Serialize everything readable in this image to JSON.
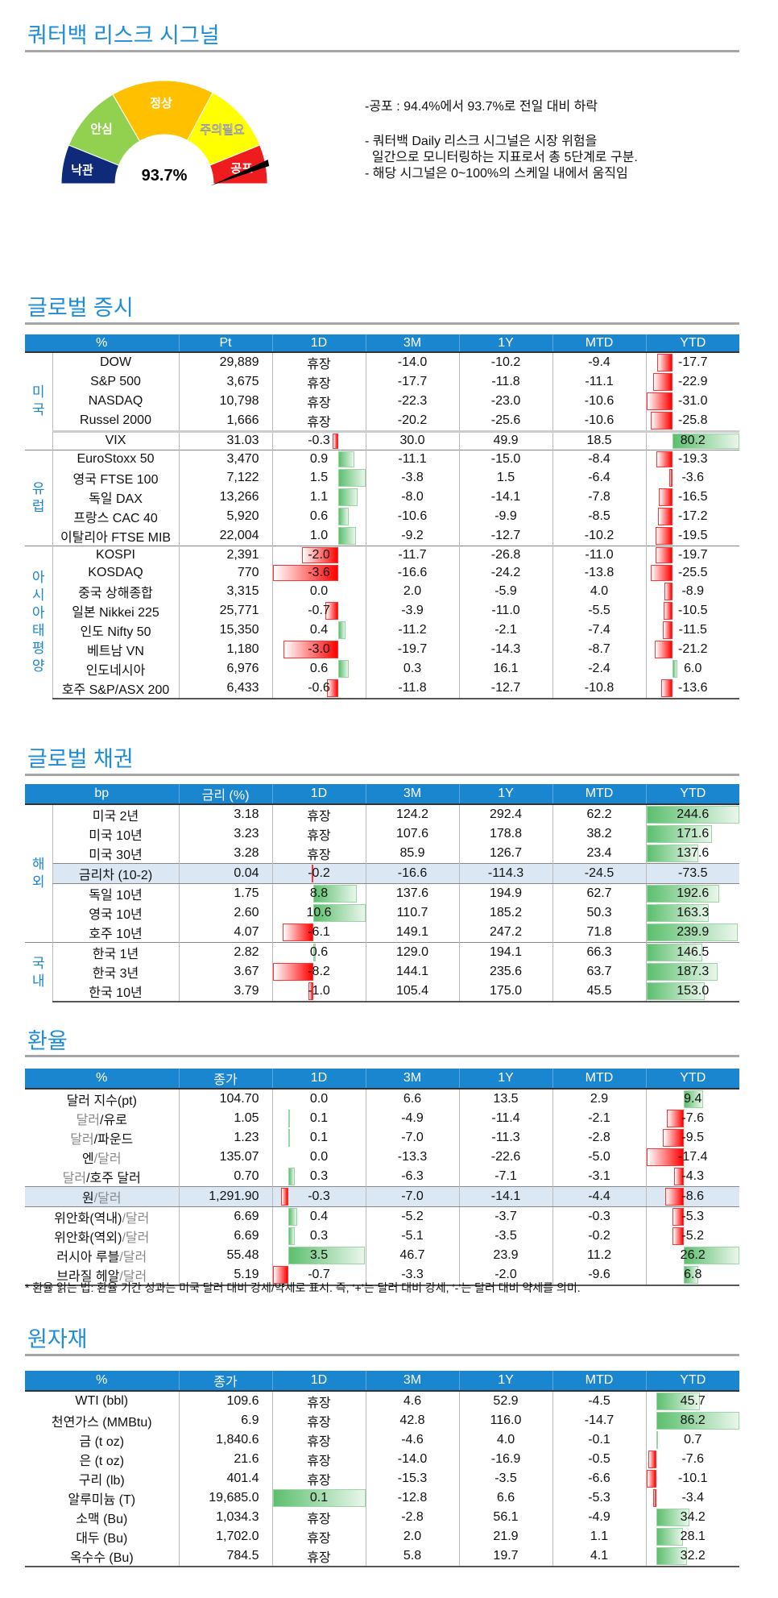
{
  "signal": {
    "title": "쿼터백 리스크 시그널",
    "value_label": "93.7%",
    "value": 0.937,
    "segments": [
      "낙관",
      "안심",
      "정상",
      "주의필요",
      "공포"
    ],
    "segment_colors": [
      "#102a7a",
      "#92d050",
      "#ffc000",
      "#ffff00",
      "#ee1c1c"
    ],
    "headline": "-공포 : 94.4%에서 93.7%로 전일 대비 하락",
    "notes": [
      "- 쿼터백 Daily 리스크 시그널은 시장 위험을",
      "  일간으로 모니터링하는 지표로서 총 5단계로 구분.",
      "- 해당 시그널은 0~100%의 스케일 내에서 움직임"
    ]
  },
  "equity": {
    "title": "글로벌 증시",
    "headers": [
      "%",
      "Pt",
      "1D",
      "3M",
      "1Y",
      "MTD",
      "YTD"
    ],
    "groups": [
      {
        "label": "미국",
        "rows": [
          {
            "name": "DOW",
            "v": [
              "29,889",
              "휴장",
              "-14.0",
              "-10.2",
              "-9.4",
              "-17.7"
            ]
          },
          {
            "name": "S&P 500",
            "v": [
              "3,675",
              "휴장",
              "-17.7",
              "-11.8",
              "-11.1",
              "-22.9"
            ]
          },
          {
            "name": "NASDAQ",
            "v": [
              "10,798",
              "휴장",
              "-22.3",
              "-23.0",
              "-10.6",
              "-31.0"
            ]
          },
          {
            "name": "Russel 2000",
            "v": [
              "1,666",
              "휴장",
              "-20.2",
              "-25.6",
              "-10.6",
              "-25.8"
            ]
          },
          {
            "name": "VIX",
            "v": [
              "31.03",
              "-0.3",
              "30.0",
              "49.9",
              "18.5",
              "80.2"
            ],
            "vsep": true
          }
        ]
      },
      {
        "label": "유럽",
        "rows": [
          {
            "name": "EuroStoxx 50",
            "v": [
              "3,470",
              "0.9",
              "-11.1",
              "-15.0",
              "-8.4",
              "-19.3"
            ]
          },
          {
            "name": "영국 FTSE 100",
            "v": [
              "7,122",
              "1.5",
              "-3.8",
              "1.5",
              "-6.4",
              "-3.6"
            ]
          },
          {
            "name": "독일 DAX",
            "v": [
              "13,266",
              "1.1",
              "-8.0",
              "-14.1",
              "-7.8",
              "-16.5"
            ]
          },
          {
            "name": "프랑스 CAC 40",
            "v": [
              "5,920",
              "0.6",
              "-10.6",
              "-9.9",
              "-8.5",
              "-17.2"
            ]
          },
          {
            "name": "이탈리아 FTSE MIB",
            "v": [
              "22,004",
              "1.0",
              "-9.2",
              "-12.7",
              "-10.2",
              "-19.5"
            ]
          }
        ]
      },
      {
        "label": "아시아태평양",
        "rows": [
          {
            "name": "KOSPI",
            "v": [
              "2,391",
              "-2.0",
              "-11.7",
              "-26.8",
              "-11.0",
              "-19.7"
            ]
          },
          {
            "name": "KOSDAQ",
            "v": [
              "770",
              "-3.6",
              "-16.6",
              "-24.2",
              "-13.8",
              "-25.5"
            ]
          },
          {
            "name": "중국 상해종합",
            "v": [
              "3,315",
              "0.0",
              "2.0",
              "-5.9",
              "4.0",
              "-8.9"
            ]
          },
          {
            "name": "일본 Nikkei 225",
            "v": [
              "25,771",
              "-0.7",
              "-3.9",
              "-11.0",
              "-5.5",
              "-10.5"
            ]
          },
          {
            "name": "인도 Nifty 50",
            "v": [
              "15,350",
              "0.4",
              "-11.2",
              "-2.1",
              "-7.4",
              "-11.5"
            ]
          },
          {
            "name": "베트남 VN",
            "v": [
              "1,180",
              "-3.0",
              "-19.7",
              "-14.3",
              "-8.7",
              "-21.2"
            ]
          },
          {
            "name": "인도네시아",
            "v": [
              "6,976",
              "0.6",
              "0.3",
              "16.1",
              "-2.4",
              "6.0"
            ]
          },
          {
            "name": "호주 S&P/ASX 200",
            "v": [
              "6,433",
              "-0.6",
              "-11.8",
              "-12.7",
              "-10.8",
              "-13.6"
            ]
          }
        ]
      }
    ]
  },
  "bonds": {
    "title": "글로벌 채권",
    "headers": [
      "bp",
      "금리 (%)",
      "1D",
      "3M",
      "1Y",
      "MTD",
      "YTD"
    ],
    "groups": [
      {
        "label": "해외",
        "rows": [
          {
            "name": "미국 2년",
            "v": [
              "3.18",
              "휴장",
              "124.2",
              "292.4",
              "62.2",
              "244.6"
            ]
          },
          {
            "name": "미국 10년",
            "v": [
              "3.23",
              "휴장",
              "107.6",
              "178.8",
              "38.2",
              "171.6"
            ]
          },
          {
            "name": "미국 30년",
            "v": [
              "3.28",
              "휴장",
              "85.9",
              "126.7",
              "23.4",
              "137.6"
            ]
          },
          {
            "name": "금리차 (10-2)",
            "v": [
              "0.04",
              "-0.2",
              "-16.6",
              "-114.3",
              "-24.5",
              "-73.5"
            ],
            "hi": true
          },
          {
            "name": "독일 10년",
            "v": [
              "1.75",
              "8.8",
              "137.6",
              "194.9",
              "62.7",
              "192.6"
            ]
          },
          {
            "name": "영국 10년",
            "v": [
              "2.60",
              "10.6",
              "110.7",
              "185.2",
              "50.3",
              "163.3"
            ]
          },
          {
            "name": "호주 10년",
            "v": [
              "4.07",
              "-6.1",
              "149.1",
              "247.2",
              "71.8",
              "239.9"
            ]
          }
        ]
      },
      {
        "label": "국내",
        "rows": [
          {
            "name": "한국 1년",
            "v": [
              "2.82",
              "0.6",
              "129.0",
              "194.1",
              "66.3",
              "146.5"
            ]
          },
          {
            "name": "한국 3년",
            "v": [
              "3.67",
              "-8.2",
              "144.1",
              "235.6",
              "63.7",
              "187.3"
            ]
          },
          {
            "name": "한국 10년",
            "v": [
              "3.79",
              "-1.0",
              "105.4",
              "175.0",
              "45.5",
              "153.0"
            ]
          }
        ]
      }
    ]
  },
  "fx": {
    "title": "환율",
    "headers": [
      "%",
      "종가",
      "1D",
      "3M",
      "1Y",
      "MTD",
      "YTD"
    ],
    "rows": [
      {
        "parts": [
          {
            "t": "달러 지수(pt)"
          }
        ],
        "v": [
          "104.70",
          "0.0",
          "6.6",
          "13.5",
          "2.9",
          "9.4"
        ]
      },
      {
        "parts": [
          {
            "t": "달러",
            "g": true
          },
          {
            "t": "/유로"
          }
        ],
        "v": [
          "1.05",
          "0.1",
          "-4.9",
          "-11.4",
          "-2.1",
          "-7.6"
        ]
      },
      {
        "parts": [
          {
            "t": "달러",
            "g": true
          },
          {
            "t": "/파운드"
          }
        ],
        "v": [
          "1.23",
          "0.1",
          "-7.0",
          "-11.3",
          "-2.8",
          "-9.5"
        ]
      },
      {
        "parts": [
          {
            "t": "엔"
          },
          {
            "t": "/달러",
            "g": true
          }
        ],
        "v": [
          "135.07",
          "0.0",
          "-13.3",
          "-22.6",
          "-5.0",
          "-17.4"
        ]
      },
      {
        "parts": [
          {
            "t": "달러",
            "g": true
          },
          {
            "t": "/호주 달러"
          }
        ],
        "v": [
          "0.70",
          "0.3",
          "-6.3",
          "-7.1",
          "-3.1",
          "-4.3"
        ]
      },
      {
        "parts": [
          {
            "t": "원"
          },
          {
            "t": "/달러",
            "g": true
          }
        ],
        "v": [
          "1,291.90",
          "-0.3",
          "-7.0",
          "-14.1",
          "-4.4",
          "-8.6"
        ],
        "hi": true
      },
      {
        "parts": [
          {
            "t": "위안화(역내)"
          },
          {
            "t": "/달러",
            "g": true
          }
        ],
        "v": [
          "6.69",
          "0.4",
          "-5.2",
          "-3.7",
          "-0.3",
          "-5.3"
        ]
      },
      {
        "parts": [
          {
            "t": "위안화(역외)"
          },
          {
            "t": "/달러",
            "g": true
          }
        ],
        "v": [
          "6.69",
          "0.3",
          "-5.1",
          "-3.5",
          "-0.2",
          "-5.2"
        ]
      },
      {
        "parts": [
          {
            "t": "러시아 루블"
          },
          {
            "t": "/달러",
            "g": true
          }
        ],
        "v": [
          "55.48",
          "3.5",
          "46.7",
          "23.9",
          "11.2",
          "26.2"
        ]
      },
      {
        "parts": [
          {
            "t": "브라질 헤알"
          },
          {
            "t": "/달러",
            "g": true
          }
        ],
        "v": [
          "5.19",
          "-0.7",
          "-3.3",
          "-2.0",
          "-9.6",
          "6.8"
        ]
      }
    ],
    "note": "* 환율 읽는 법: 환율 기간 성과는 미국 달러 대비 강세/약세로 표시. 즉, ‘+’는 달러 대비 강세, ‘-’는 달러 대비 약세를 의미."
  },
  "commod": {
    "title": "원자재",
    "headers": [
      "%",
      "종가",
      "1D",
      "3M",
      "1Y",
      "MTD",
      "YTD"
    ],
    "rows": [
      {
        "name": "WTI (bbl)",
        "v": [
          "109.6",
          "휴장",
          "4.6",
          "52.9",
          "-4.5",
          "45.7"
        ]
      },
      {
        "name": "천연가스 (MMBtu)",
        "v": [
          "6.9",
          "휴장",
          "42.8",
          "116.0",
          "-14.7",
          "86.2"
        ]
      },
      {
        "name": "금 (t oz)",
        "v": [
          "1,840.6",
          "휴장",
          "-4.6",
          "4.0",
          "-0.1",
          "0.7"
        ]
      },
      {
        "name": "은 (t oz)",
        "v": [
          "21.6",
          "휴장",
          "-14.0",
          "-16.9",
          "-0.5",
          "-7.6"
        ]
      },
      {
        "name": "구리 (lb)",
        "v": [
          "401.4",
          "휴장",
          "-15.3",
          "-3.5",
          "-6.6",
          "-10.1"
        ]
      },
      {
        "name": "알루미늄 (T)",
        "v": [
          "19,685.0",
          "0.1",
          "-12.8",
          "6.6",
          "-5.3",
          "-3.4"
        ]
      },
      {
        "name": "소맥 (Bu)",
        "v": [
          "1,034.3",
          "휴장",
          "-2.8",
          "56.1",
          "-4.9",
          "34.2"
        ]
      },
      {
        "name": "대두 (Bu)",
        "v": [
          "1,702.0",
          "휴장",
          "2.0",
          "21.9",
          "1.1",
          "28.1"
        ]
      },
      {
        "name": "옥수수 (Bu)",
        "v": [
          "784.5",
          "휴장",
          "5.8",
          "19.7",
          "4.1",
          "32.2"
        ]
      }
    ]
  }
}
